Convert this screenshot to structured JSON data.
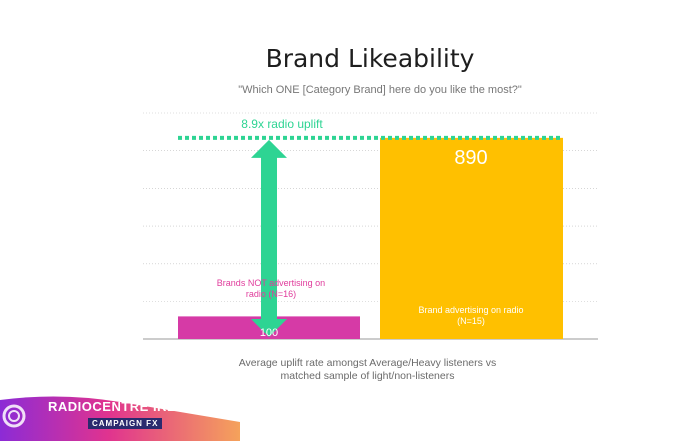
{
  "chart_data": {
    "type": "bar",
    "title": "Brand Likeability",
    "subtitle": "\"Which ONE [Category Brand] here do you like the most?\"",
    "categories": [
      "Brands NOT advertising  on radio (N=16)",
      "Brand advertising  on radio (N=15)"
    ],
    "values": [
      100,
      890
    ],
    "value_labels": [
      "100",
      "890"
    ],
    "ylim": [
      0,
      1000
    ],
    "grid": true,
    "annotation": "8.9x radio uplift",
    "footnote": [
      "Average  uplift  rate amongst  Average/Heavy  listeners  vs",
      "matched  sample  of light/non-listeners"
    ],
    "colors": {
      "bar_not_advertising": "#d63aa6",
      "bar_advertising": "#ffc000",
      "arrow": "#2ed493",
      "label_not_advertising": "#e03c9c",
      "grid": "#bfbfbf"
    }
  },
  "logo": {
    "name": "RADIOCENTRE IRELAND",
    "sub": "CAMPAIGN FX"
  }
}
